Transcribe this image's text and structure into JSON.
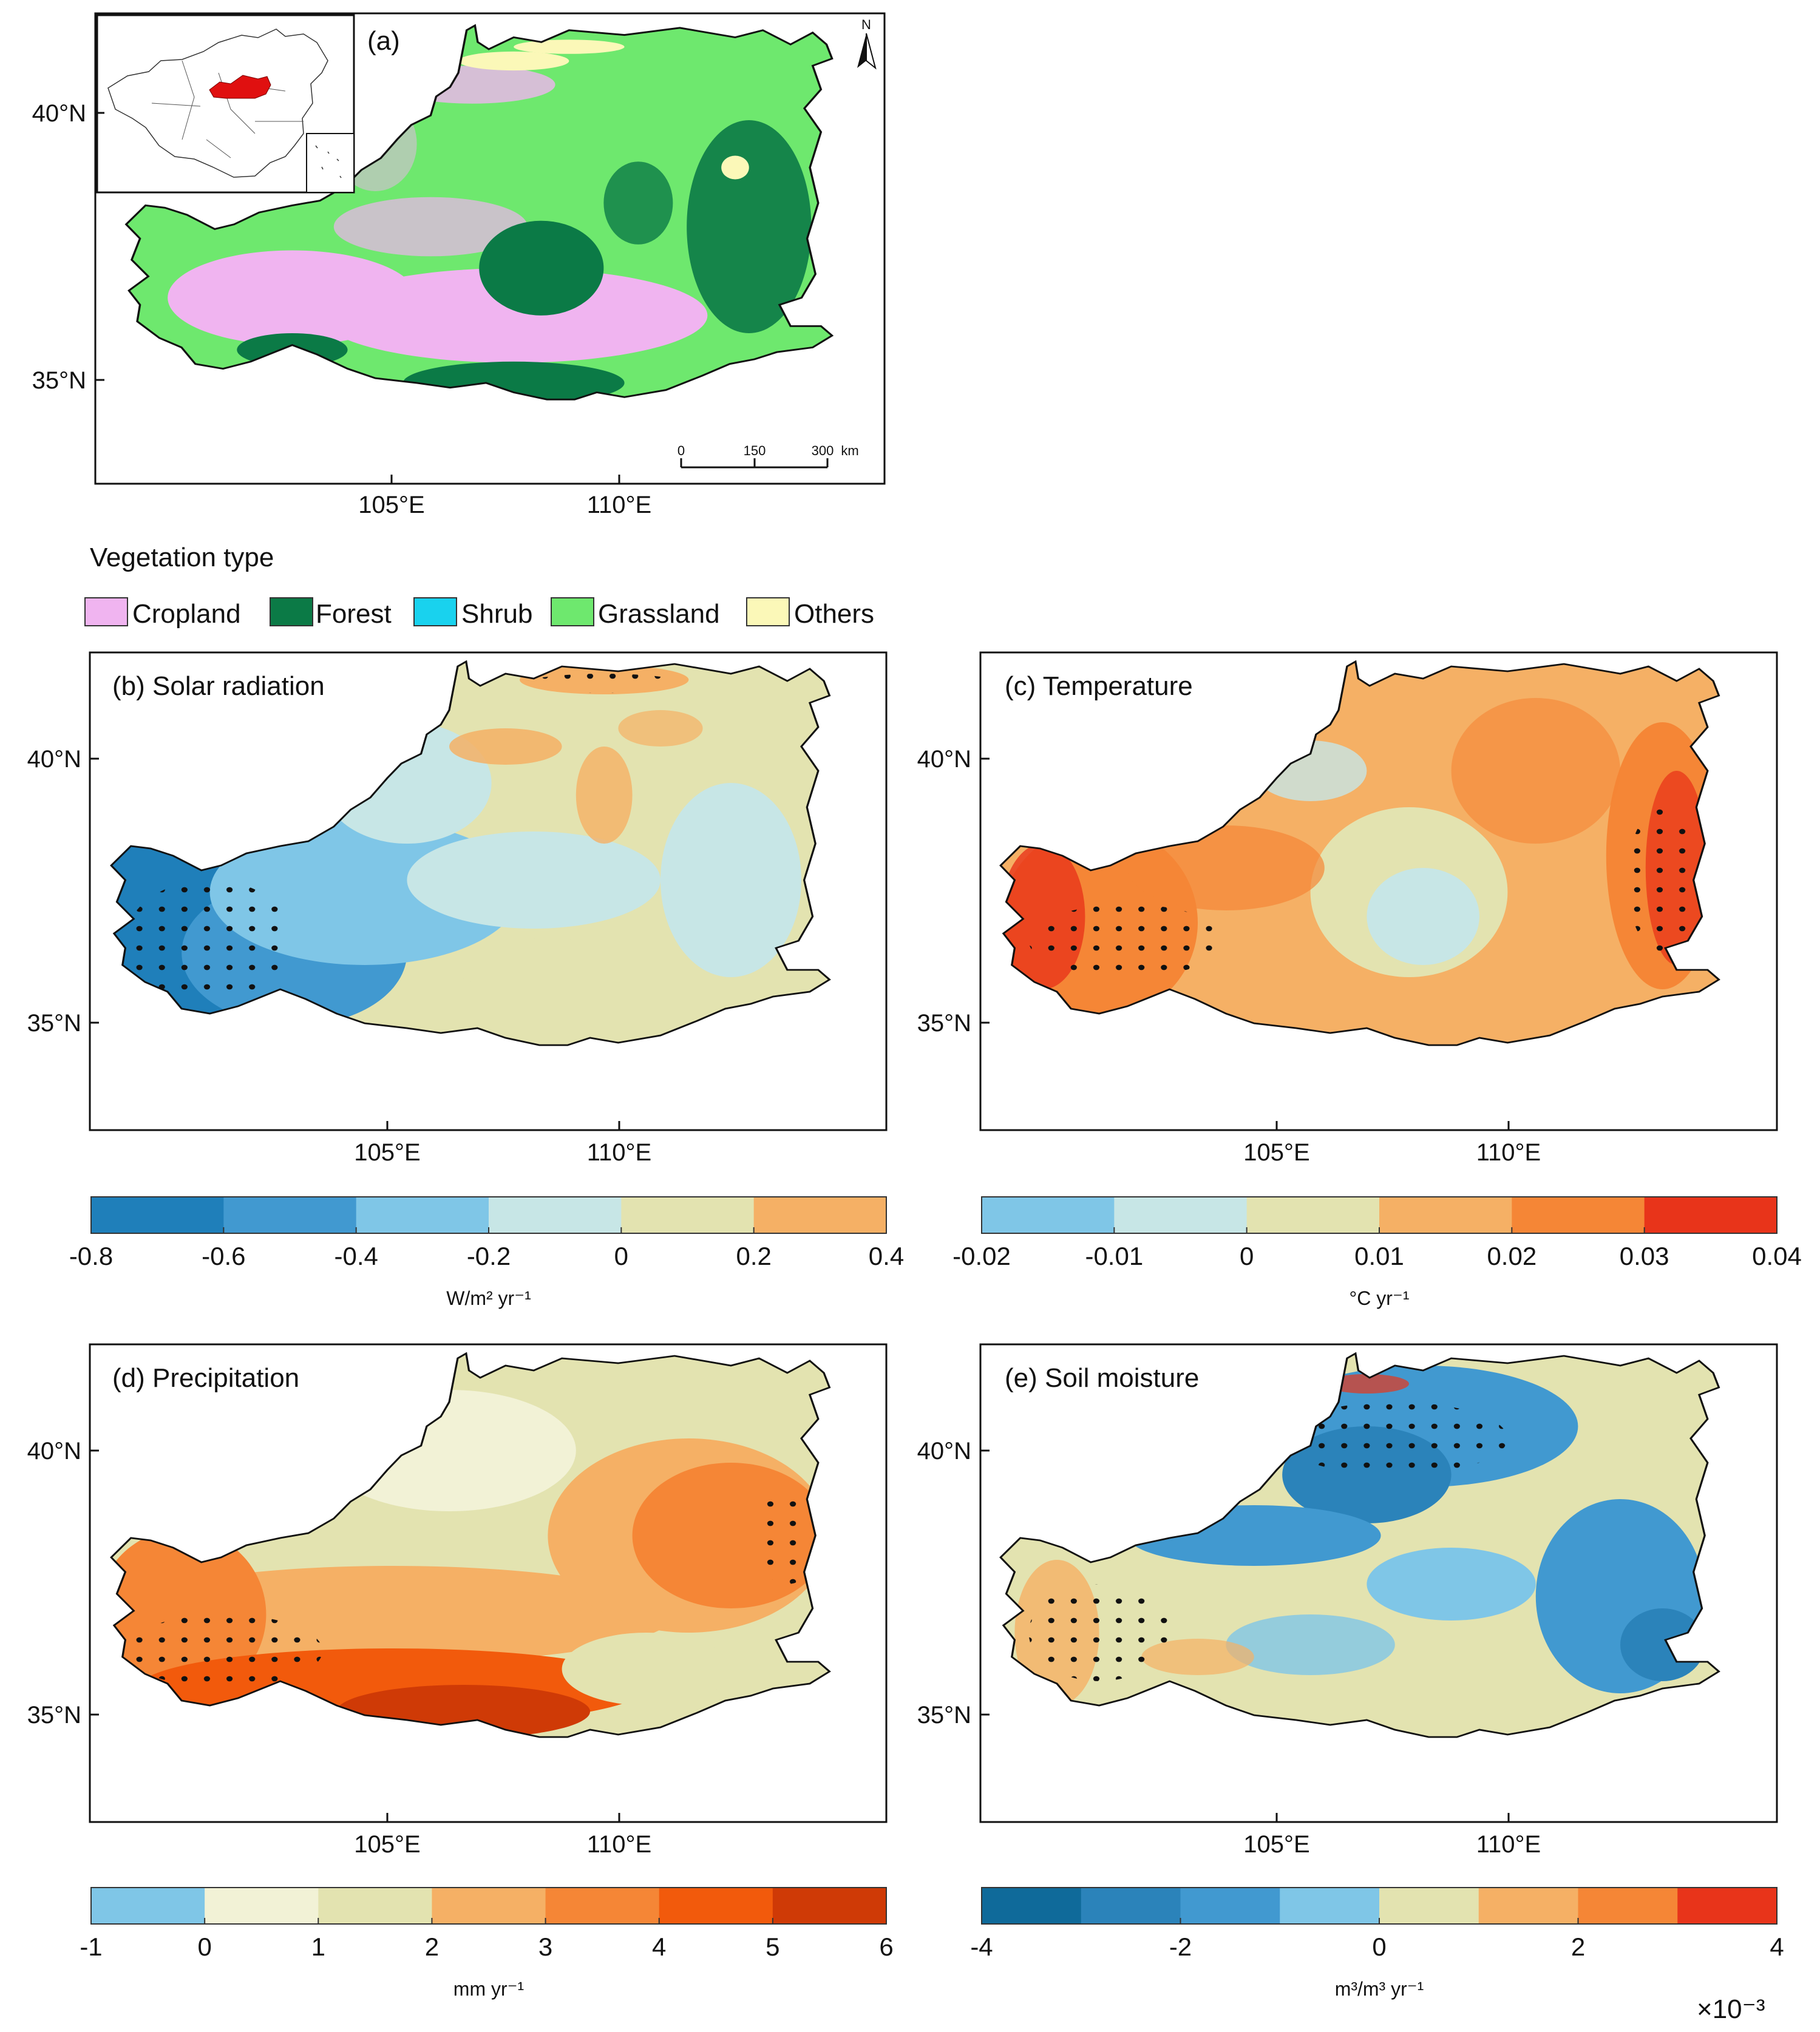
{
  "panel_a": {
    "label": "(a)",
    "north_label": "N",
    "lat_ticks": [
      "40°N",
      "35°N"
    ],
    "lon_ticks": [
      "105°E",
      "110°E"
    ],
    "scalebar": {
      "ticks": [
        "0",
        "150",
        "300"
      ],
      "unit": "km"
    }
  },
  "legend": {
    "title": "Vegetation type",
    "items": [
      {
        "label": "Cropland",
        "color": "#f0b4f0"
      },
      {
        "label": "Forest",
        "color": "#0b7a46"
      },
      {
        "label": "Shrub",
        "color": "#19d2ee"
      },
      {
        "label": "Grassland",
        "color": "#6ee86e"
      },
      {
        "label": "Others",
        "color": "#fbf8b8"
      }
    ]
  },
  "panel_b": {
    "title": "(b) Solar radiation",
    "lat_ticks": [
      "40°N",
      "35°N"
    ],
    "lon_ticks": [
      "105°E",
      "110°E"
    ],
    "colorbar": {
      "ticks": [
        "-0.8",
        "-0.6",
        "-0.4",
        "-0.2",
        "0",
        "0.2",
        "0.4"
      ],
      "unit": "W/m² yr⁻¹",
      "colors": [
        "#1f7fba",
        "#4199d0",
        "#7fc6e7",
        "#c7e6e6",
        "#e3e3b0",
        "#f5b065"
      ]
    }
  },
  "panel_c": {
    "title": "(c) Temperature",
    "lat_ticks": [
      "40°N",
      "35°N"
    ],
    "lon_ticks": [
      "105°E",
      "110°E"
    ],
    "colorbar": {
      "ticks": [
        "-0.02",
        "-0.01",
        "0",
        "0.01",
        "0.02",
        "0.03",
        "0.04"
      ],
      "unit": "°C yr⁻¹",
      "colors": [
        "#7fc6e7",
        "#c7e6e6",
        "#e3e3b0",
        "#f5b065",
        "#f58636",
        "#e8341a"
      ]
    }
  },
  "panel_d": {
    "title": "(d) Precipitation",
    "lat_ticks": [
      "40°N",
      "35°N"
    ],
    "lon_ticks": [
      "105°E",
      "110°E"
    ],
    "colorbar": {
      "ticks": [
        "-1",
        "0",
        "1",
        "2",
        "3",
        "4",
        "5",
        "6"
      ],
      "unit": "mm yr⁻¹",
      "colors": [
        "#7fc6e7",
        "#f2f2d6",
        "#e3e3b0",
        "#f5b065",
        "#f58636",
        "#f25a0c",
        "#cf3a06"
      ]
    }
  },
  "panel_e": {
    "title": "(e) Soil moisture",
    "lat_ticks": [
      "40°N",
      "35°N"
    ],
    "lon_ticks": [
      "105°E",
      "110°E"
    ],
    "colorbar": {
      "ticks": [
        "-4",
        "-2",
        "0",
        "2",
        "4"
      ],
      "unit": "m³/m³ yr⁻¹",
      "multiplier": "×10⁻³",
      "colors": [
        "#0f6a9a",
        "#2b83ba",
        "#4199d0",
        "#7fc6e7",
        "#e3e3b0",
        "#f5b065",
        "#f58636",
        "#e8341a"
      ]
    }
  },
  "inset_map": {
    "highlight_color": "#e01010"
  }
}
